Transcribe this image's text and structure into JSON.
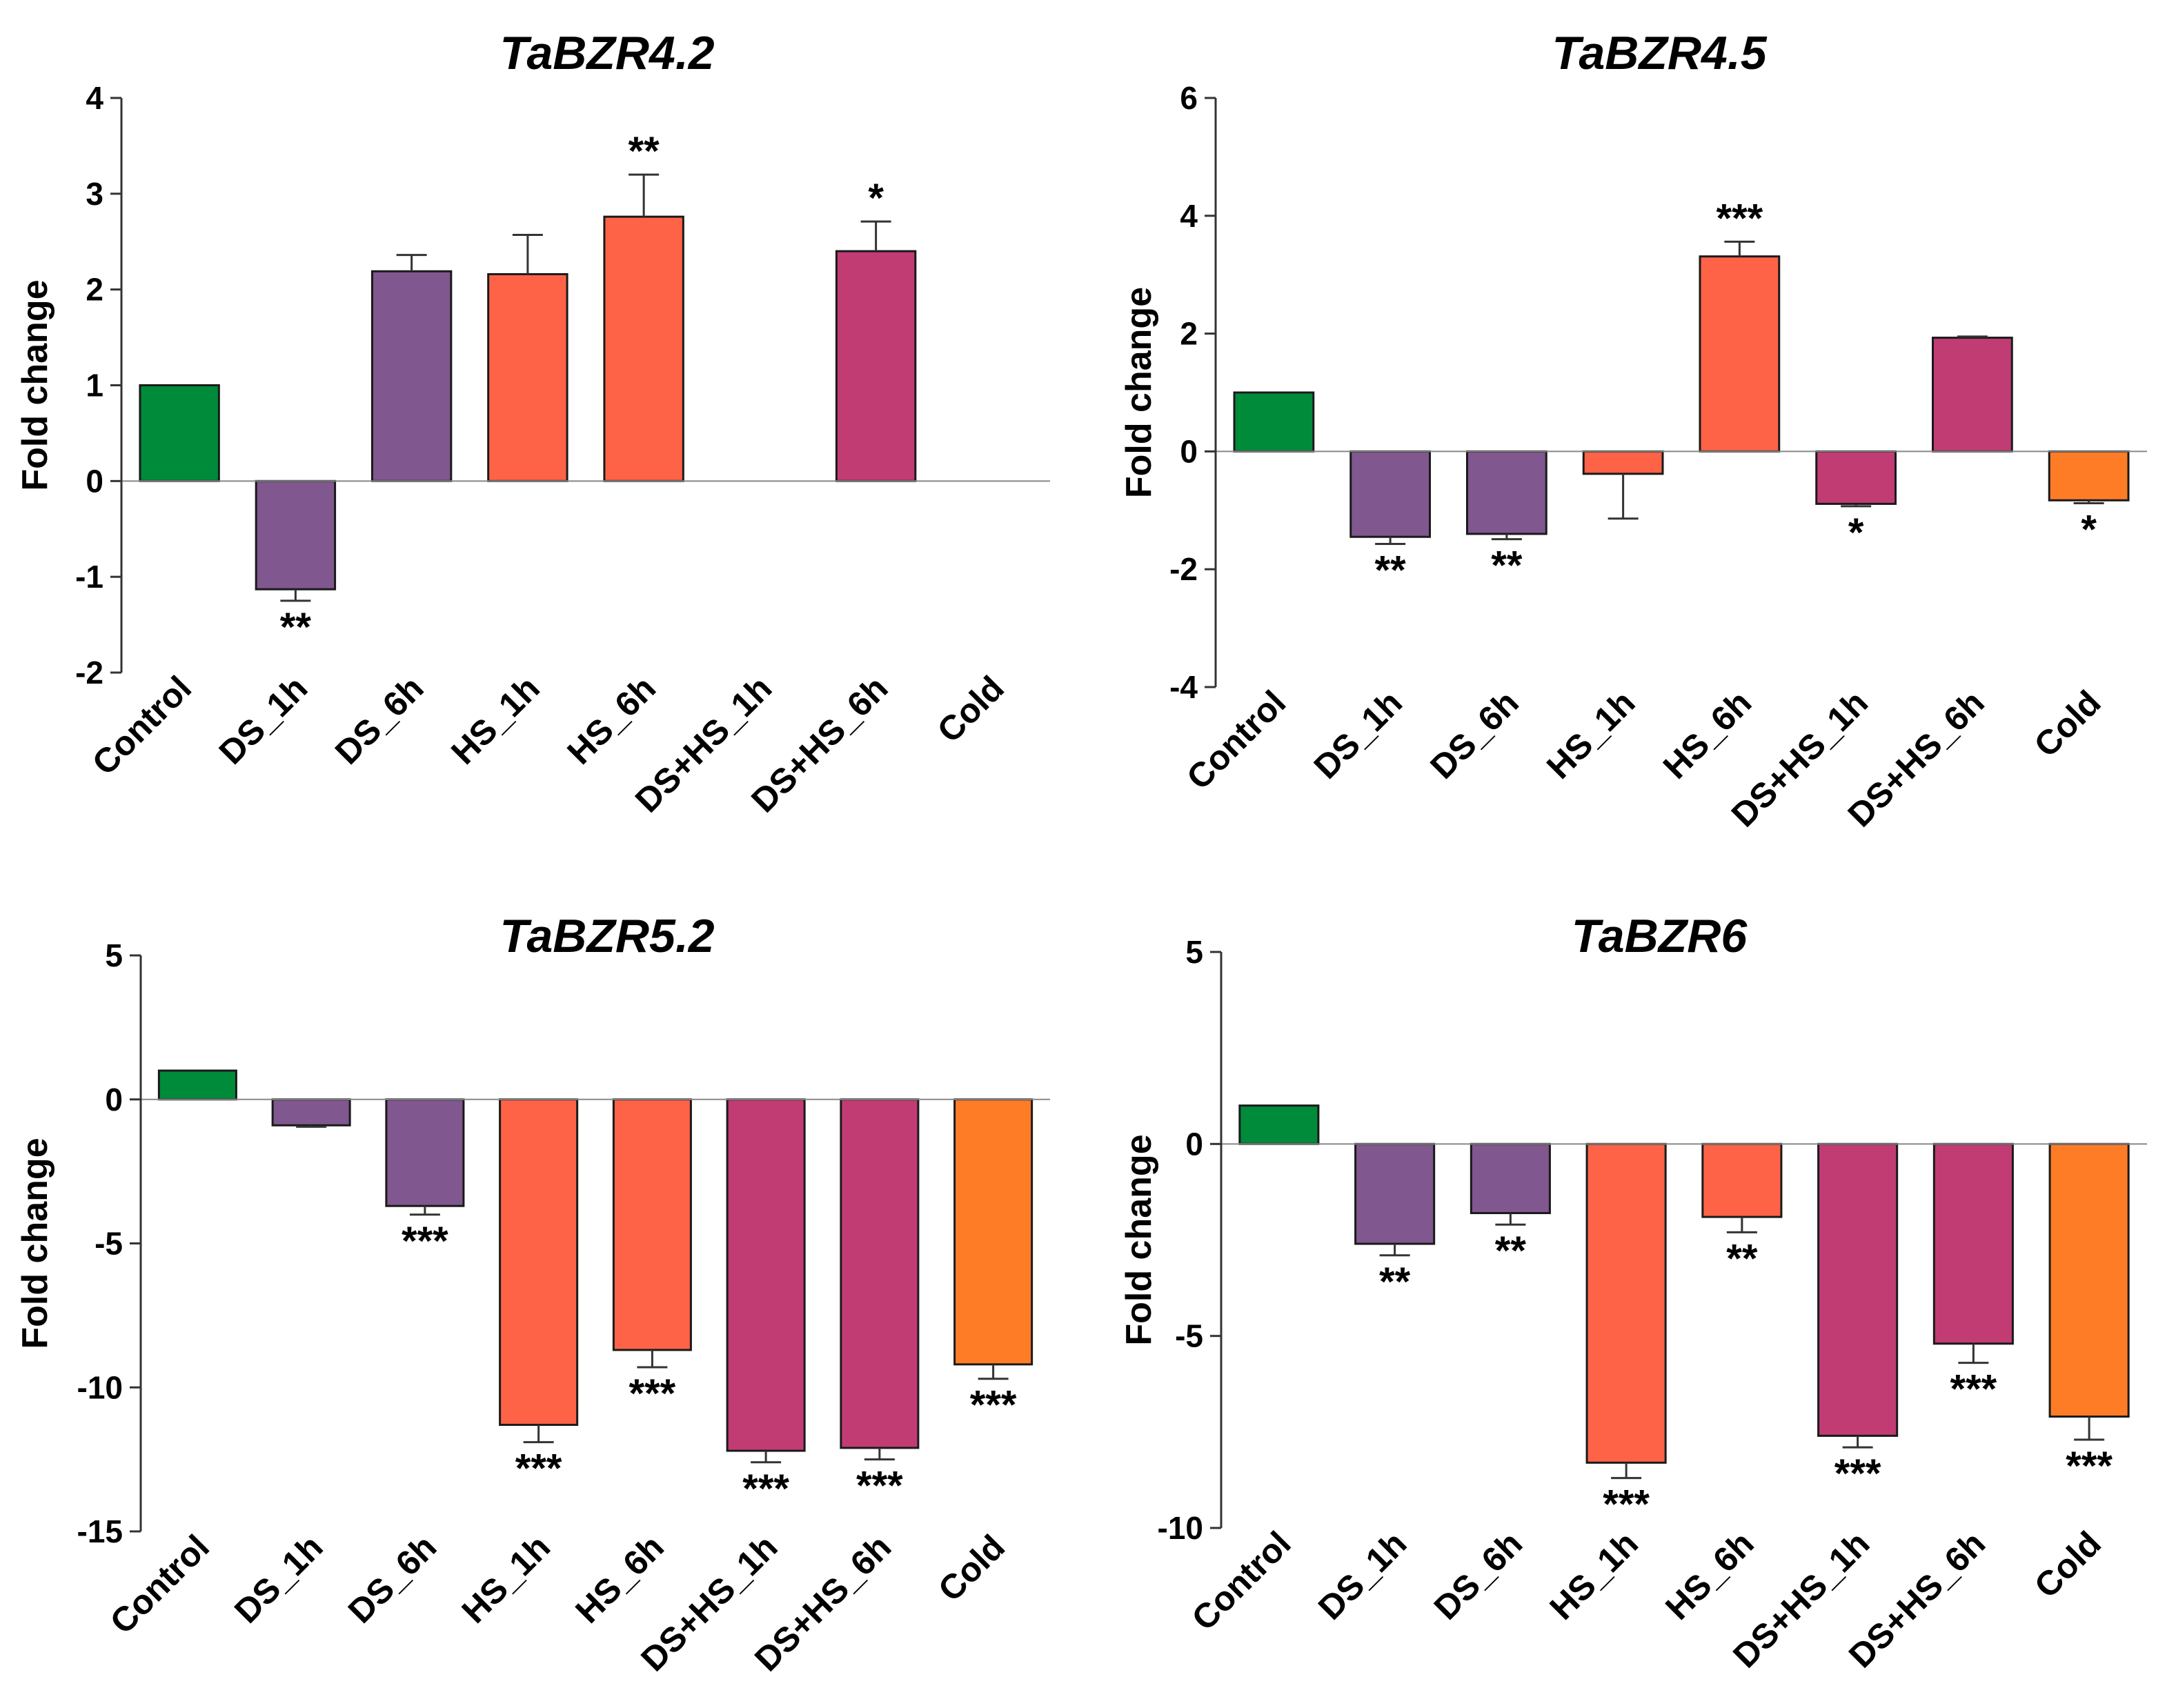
{
  "chart_data": [
    {
      "type": "bar",
      "title": "TaBZR4.2",
      "ylabel": "Fold change",
      "xlabel": "",
      "ylim": [
        -2,
        4
      ],
      "yticks": [
        4,
        3,
        2,
        1,
        0,
        -1,
        -2
      ],
      "categories": [
        "Control",
        "DS_1h",
        "DS_6h",
        "HS_1h",
        "HS_6h",
        "DS+HS_1h",
        "DS+HS_6h",
        "Cold"
      ],
      "values": [
        1.0,
        -1.13,
        2.19,
        2.16,
        2.76,
        null,
        2.4,
        null
      ],
      "errors": [
        0,
        0.12,
        0.17,
        0.41,
        0.44,
        null,
        0.31,
        null
      ],
      "significance": [
        "",
        "**",
        "",
        "",
        "**",
        "",
        "*",
        ""
      ],
      "colors": [
        "#008B3A",
        "#80578F",
        "#80578F",
        "#FF6347",
        "#FF6347",
        "#C23C74",
        "#C23C74",
        "#FF7C27"
      ]
    },
    {
      "type": "bar",
      "title": "TaBZR4.5",
      "ylabel": "Fold change",
      "xlabel": "",
      "ylim": [
        -4,
        6
      ],
      "yticks": [
        6,
        4,
        2,
        0,
        -2,
        -4
      ],
      "categories": [
        "Control",
        "DS_1h",
        "DS_6h",
        "HS_1h",
        "HS_6h",
        "DS+HS_1h",
        "DS+HS_6h",
        "Cold"
      ],
      "values": [
        1.0,
        -1.45,
        -1.4,
        -0.38,
        3.31,
        -0.89,
        1.93,
        -0.83
      ],
      "errors": [
        0,
        0.12,
        0.09,
        0.76,
        0.25,
        0.04,
        0.02,
        0.05
      ],
      "significance": [
        "",
        "**",
        "**",
        "",
        "***",
        "*",
        "",
        "*"
      ],
      "colors": [
        "#008B3A",
        "#80578F",
        "#80578F",
        "#FF6347",
        "#FF6347",
        "#C23C74",
        "#C23C74",
        "#FF7C27"
      ]
    },
    {
      "type": "bar",
      "title": "TaBZR5.2",
      "ylabel": "Fold change",
      "xlabel": "",
      "ylim": [
        -15,
        5
      ],
      "yticks": [
        5,
        0,
        -5,
        -10,
        -15
      ],
      "categories": [
        "Control",
        "DS_1h",
        "DS_6h",
        "HS_1h",
        "HS_6h",
        "DS+HS_1h",
        "DS+HS_6h",
        "Cold"
      ],
      "values": [
        1.0,
        -0.9,
        -3.7,
        -11.3,
        -8.7,
        -12.2,
        -12.1,
        -9.2
      ],
      "errors": [
        0,
        0.05,
        0.3,
        0.6,
        0.6,
        0.4,
        0.4,
        0.5
      ],
      "significance": [
        "",
        "",
        "***",
        "***",
        "***",
        "***",
        "***",
        "***"
      ],
      "colors": [
        "#008B3A",
        "#80578F",
        "#80578F",
        "#FF6347",
        "#FF6347",
        "#C23C74",
        "#C23C74",
        "#FF7C27"
      ]
    },
    {
      "type": "bar",
      "title": "TaBZR6",
      "ylabel": "Fold change",
      "xlabel": "",
      "ylim": [
        -10,
        5
      ],
      "yticks": [
        5,
        0,
        -5,
        -10
      ],
      "categories": [
        "Control",
        "DS_1h",
        "DS_6h",
        "HS_1h",
        "HS_6h",
        "DS+HS_1h",
        "DS+HS_6h",
        "Cold"
      ],
      "values": [
        1.0,
        -2.6,
        -1.8,
        -8.3,
        -1.9,
        -7.6,
        -5.2,
        -7.1
      ],
      "errors": [
        0,
        0.3,
        0.3,
        0.4,
        0.4,
        0.3,
        0.5,
        0.6
      ],
      "significance": [
        "",
        "**",
        "**",
        "***",
        "**",
        "***",
        "***",
        "***"
      ],
      "colors": [
        "#008B3A",
        "#80578F",
        "#80578F",
        "#FF6347",
        "#FF6347",
        "#C23C74",
        "#C23C74",
        "#FF7C27"
      ]
    }
  ]
}
